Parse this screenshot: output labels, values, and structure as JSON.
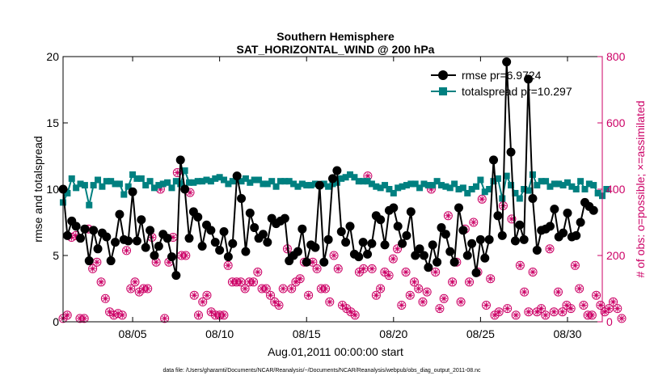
{
  "chart_data": {
    "type": "line",
    "title": "Southern Hemisphere",
    "subtitle": "SAT_HORIZONTAL_WIND @ 200 hPa",
    "xlabel": "Aug.01,2011 00:00:00 start",
    "ylabel_left": "rmse and totalspread",
    "ylabel_right": "# of obs: o=possible; ×=assimilated",
    "footer": "data file: /Users/gharamti/Documents/NCAR/Reanalysis/~/Documents/NCAR/Reanalysis/webpub/obs_diag_output_2011-08.nc",
    "x_range": [
      1,
      32
    ],
    "ylim_left": [
      0,
      20
    ],
    "ylim_right": [
      0,
      800
    ],
    "x_ticks": [
      {
        "pos": 5,
        "label": "08/05"
      },
      {
        "pos": 10,
        "label": "08/10"
      },
      {
        "pos": 15,
        "label": "08/15"
      },
      {
        "pos": 20,
        "label": "08/20"
      },
      {
        "pos": 25,
        "label": "08/25"
      },
      {
        "pos": 30,
        "label": "08/30"
      }
    ],
    "y_ticks_left": [
      "0",
      "5",
      "10",
      "15",
      "20"
    ],
    "y_ticks_right": [
      "0",
      "200",
      "400",
      "600",
      "800"
    ],
    "colors": {
      "rmse": "#000000",
      "totalspread": "#008080",
      "obs": "#cc0066",
      "axis_right": "#cc0066"
    },
    "series": [
      {
        "name": "rmse",
        "legend": "rmse pr=6.9724",
        "axis": "left",
        "values": [
          10.0,
          6.5,
          7.6,
          7.2,
          6.3,
          7.0,
          4.6,
          6.9,
          5.5,
          6.7,
          6.4,
          4.6,
          6.0,
          8.1,
          6.2,
          6.1,
          9.8,
          6.1,
          7.7,
          5.6,
          6.9,
          5.0,
          5.7,
          6.6,
          6.3,
          4.9,
          3.5,
          12.2,
          10.0,
          6.3,
          8.3,
          7.9,
          5.7,
          7.3,
          6.9,
          6.0,
          5.4,
          6.8,
          4.9,
          5.9,
          11.0,
          9.3,
          5.3,
          8.2,
          7.1,
          6.3,
          6.6,
          6.0,
          7.8,
          7.4,
          7.6,
          7.8,
          4.6,
          5.0,
          5.3,
          7.0,
          4.5,
          5.8,
          5.6,
          10.3,
          4.5,
          6.2,
          10.8,
          11.4,
          6.8,
          6.0,
          7.2,
          5.1,
          4.9,
          6.0,
          5.1,
          5.9,
          8.0,
          7.7,
          5.8,
          8.4,
          8.6,
          7.2,
          5.9,
          6.5,
          8.3,
          5.0,
          5.5,
          5.0,
          4.1,
          5.8,
          4.5,
          7.1,
          6.6,
          5.3,
          4.5,
          8.6,
          6.9,
          5.0,
          5.9,
          3.7,
          6.2,
          4.8,
          6.2,
          12.2,
          8.0,
          6.5,
          19.6,
          12.8,
          6.1,
          7.3,
          6.2,
          18.3,
          9.3,
          5.4,
          6.9,
          7.0,
          7.2,
          8.5,
          6.4,
          6.7,
          8.2,
          6.4,
          6.5,
          7.5,
          9.0,
          8.7,
          8.4
        ],
        "x_start": 1.0,
        "x_step": 0.25
      },
      {
        "name": "totalspread",
        "legend": "totalspread pr=10.297",
        "axis": "left",
        "values": [
          9.0,
          9.7,
          10.8,
          10.1,
          10.4,
          10.3,
          8.8,
          10.3,
          10.7,
          10.2,
          10.6,
          10.6,
          10.4,
          10.4,
          9.6,
          10.2,
          11.1,
          10.8,
          10.8,
          10.3,
          10.6,
          10.1,
          10.3,
          10.4,
          10.5,
          10.1,
          10.6,
          10.4,
          11.4,
          10.5,
          10.5,
          10.6,
          10.6,
          10.7,
          10.6,
          10.8,
          10.9,
          10.7,
          10.4,
          10.6,
          10.8,
          10.6,
          10.8,
          10.5,
          10.7,
          10.7,
          10.4,
          10.4,
          10.6,
          10.2,
          10.6,
          10.6,
          10.6,
          10.4,
          10.2,
          10.4,
          10.3,
          10.3,
          10.4,
          10.3,
          10.4,
          10.2,
          10.4,
          10.5,
          10.8,
          10.9,
          11.1,
          10.9,
          10.6,
          10.6,
          10.6,
          10.4,
          10.2,
          10.1,
          10.3,
          10.0,
          9.7,
          10.1,
          10.2,
          10.3,
          10.4,
          10.4,
          10.1,
          10.4,
          10.3,
          10.3,
          10.6,
          10.3,
          10.2,
          10.1,
          10.4,
          10.0,
          10.1,
          9.7,
          10.0,
          10.2,
          10.7,
          9.8,
          10.0,
          10.6,
          10.8,
          9.3,
          11.0,
          10.3,
          9.7,
          9.3,
          10.0,
          9.9,
          11.1,
          10.3,
          10.6,
          10.6,
          10.2,
          10.4,
          10.4,
          10.3,
          10.5,
          10.2,
          10.0,
          10.6,
          10.0,
          10.4,
          10.3,
          9.7,
          9.5,
          10.0
        ],
        "x_start": 1.0,
        "x_step": 0.25
      },
      {
        "name": "obs_possible",
        "legend": "",
        "axis": "right",
        "values": [
          10,
          20,
          255,
          260,
          10,
          10,
          280,
          160,
          180,
          120,
          70,
          30,
          20,
          25,
          20,
          215,
          100,
          120,
          90,
          100,
          100,
          255,
          180,
          400,
          10,
          180,
          255,
          450,
          200,
          200,
          390,
          80,
          20,
          60,
          80,
          30,
          20,
          20,
          20,
          170,
          120,
          120,
          120,
          100,
          120,
          120,
          150,
          100,
          100,
          80,
          60,
          50,
          100,
          220,
          100,
          120,
          130,
          180,
          80,
          180,
          160,
          100,
          100,
          60,
          200,
          160,
          50,
          40,
          30,
          20,
          150,
          160,
          440,
          160,
          80,
          100,
          150,
          140,
          190,
          220,
          50,
          150,
          80,
          120,
          100,
          60,
          90,
          400,
          150,
          40,
          70,
          320,
          120,
          180,
          60,
          280,
          120,
          300,
          150,
          370,
          50,
          130,
          20,
          30,
          350,
          40,
          310,
          20,
          170,
          90,
          30,
          150,
          30,
          40,
          20,
          220,
          30,
          90,
          30,
          50,
          40,
          170,
          100,
          50,
          20,
          20,
          80,
          50,
          30,
          40,
          60,
          40,
          10
        ],
        "x_start": 1.0,
        "x_step": 0.2433
      }
    ]
  }
}
